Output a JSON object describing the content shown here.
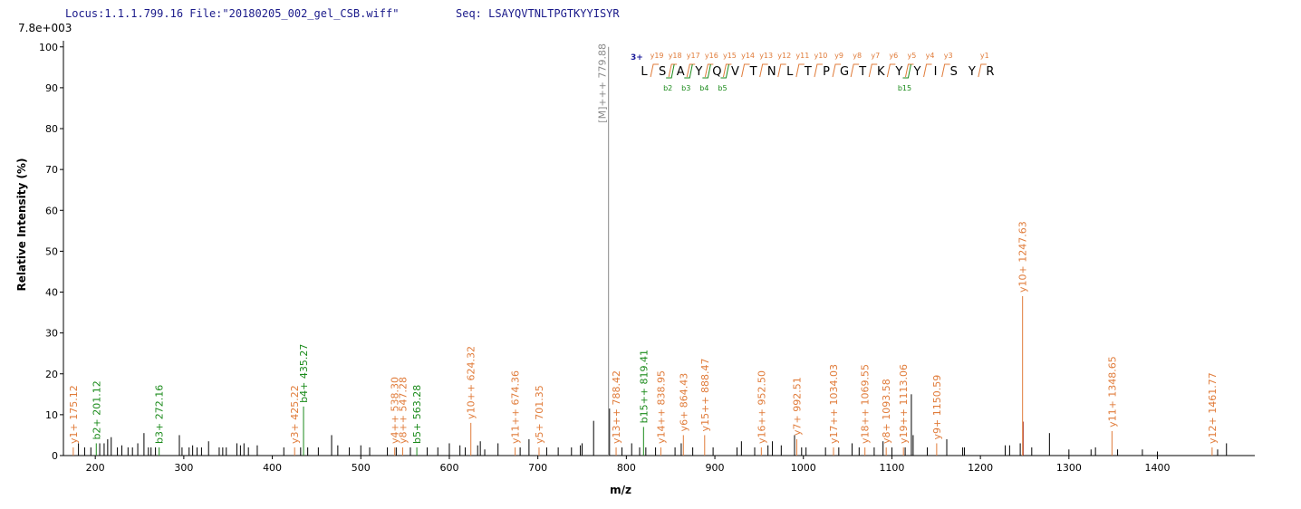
{
  "chart_data": {
    "type": "spectrum",
    "header": "Locus:1.1.1.799.16 File:\"20180205_002_gel_CSB.wiff\"",
    "sequence_label": "Seq: LSAYQVTNLTPGTKYYISYR",
    "scale_label": "7.8e+003",
    "y_axis_label": "Relative   Intensity (%)",
    "x_axis_label": "m/z",
    "xlim": [
      164,
      1510
    ],
    "ylim": [
      0,
      101.5
    ],
    "xticks": [
      200,
      300,
      400,
      500,
      600,
      700,
      800,
      900,
      1000,
      1100,
      1200,
      1300,
      1400
    ],
    "yticks": [
      0,
      10,
      20,
      30,
      40,
      50,
      60,
      70,
      80,
      90,
      100
    ],
    "peaks": {
      "color": "#000000",
      "x": [
        181,
        188,
        195,
        205,
        210,
        214,
        218,
        225,
        230,
        237,
        242,
        248,
        255,
        260,
        263,
        268,
        295,
        298,
        306,
        310,
        315,
        320,
        328,
        340,
        344,
        348,
        360,
        364,
        368,
        373,
        383,
        413,
        432,
        440,
        452,
        467,
        474,
        487,
        500,
        510,
        530,
        540,
        556,
        575,
        587,
        600,
        612,
        618,
        632,
        635,
        640,
        655,
        680,
        690,
        710,
        723,
        738,
        748,
        750,
        763,
        781,
        795,
        806,
        815,
        822,
        833,
        855,
        862,
        875,
        898,
        925,
        930,
        945,
        960,
        965,
        975,
        990,
        998,
        1003,
        1025,
        1040,
        1055,
        1063,
        1080,
        1090,
        1100,
        1115,
        1122,
        1124,
        1140,
        1162,
        1180,
        1182,
        1228,
        1233,
        1245,
        1258,
        1278,
        1300,
        1325,
        1330,
        1355,
        1383,
        1400,
        1468,
        1478
      ],
      "values": [
        3,
        2,
        2,
        3,
        3,
        4,
        4.5,
        2,
        2.5,
        2,
        2,
        3,
        5.5,
        2,
        2,
        2,
        5,
        2,
        2,
        2.5,
        2,
        2,
        3.5,
        2,
        2,
        2,
        3,
        2.5,
        3,
        2,
        2.5,
        2,
        2,
        2,
        2,
        5,
        2.5,
        2,
        2.5,
        2,
        2,
        2,
        2,
        2,
        2,
        3,
        2.5,
        2,
        2.5,
        3.5,
        1.5,
        3,
        2,
        4,
        2,
        2,
        2,
        2.5,
        3,
        8.5,
        11.5,
        2,
        3,
        2,
        2,
        2,
        2,
        3,
        2,
        2,
        2,
        3.5,
        2,
        2.5,
        3.5,
        2.5,
        5,
        2,
        2,
        2,
        2,
        3,
        2,
        2,
        3.5,
        2,
        2,
        15,
        5,
        2,
        4,
        2,
        2,
        2.5,
        2.5,
        3,
        2,
        5.5,
        1.5,
        1.5,
        2,
        1.5,
        1.5,
        1,
        1.5,
        3
      ]
    },
    "highlight_peaks": {
      "color": "#8b0000",
      "x": [
        1248.2
      ],
      "values": [
        8.3
      ]
    },
    "annotations": [
      {
        "label": "y1+ 175.12",
        "mz": 175.12,
        "intensity": 2,
        "color": "#e07b39"
      },
      {
        "label": "b2+ 201.12",
        "mz": 201.12,
        "intensity": 3,
        "color": "#1a8a1a"
      },
      {
        "label": "b3+ 272.16",
        "mz": 272.16,
        "intensity": 2,
        "color": "#1a8a1a"
      },
      {
        "label": "y3+ 425.22",
        "mz": 425.22,
        "intensity": 2,
        "color": "#e07b39"
      },
      {
        "label": "b4+ 435.27",
        "mz": 435.27,
        "intensity": 12,
        "color": "#1a8a1a"
      },
      {
        "label": "y4++ 538.30",
        "mz": 538.3,
        "intensity": 2,
        "color": "#e07b39"
      },
      {
        "label": "y8++ 547.28",
        "mz": 547.28,
        "intensity": 2,
        "color": "#e07b39"
      },
      {
        "label": "b5+ 563.28",
        "mz": 563.28,
        "intensity": 2,
        "color": "#1a8a1a"
      },
      {
        "label": "y10++ 624.32",
        "mz": 624.32,
        "intensity": 8,
        "color": "#e07b39"
      },
      {
        "label": "y11++ 674.36",
        "mz": 674.36,
        "intensity": 2,
        "color": "#e07b39"
      },
      {
        "label": "y5+ 701.35",
        "mz": 701.35,
        "intensity": 2,
        "color": "#e07b39"
      },
      {
        "label": "[M]+++ 779.88",
        "mz": 779.88,
        "intensity": 100,
        "color": "#888888"
      },
      {
        "label": "y13++ 788.42",
        "mz": 788.42,
        "intensity": 2,
        "color": "#e07b39"
      },
      {
        "label": "b15++ 819.41",
        "mz": 819.41,
        "intensity": 7,
        "color": "#1a8a1a"
      },
      {
        "label": "y14++ 838.95",
        "mz": 838.95,
        "intensity": 2,
        "color": "#e07b39"
      },
      {
        "label": "y6+ 864.43",
        "mz": 864.43,
        "intensity": 5,
        "color": "#e07b39"
      },
      {
        "label": "y15++ 888.47",
        "mz": 888.47,
        "intensity": 5,
        "color": "#e07b39"
      },
      {
        "label": "y16++ 952.50",
        "mz": 952.5,
        "intensity": 2,
        "color": "#e07b39"
      },
      {
        "label": "y7+ 992.51",
        "mz": 992.51,
        "intensity": 4,
        "color": "#e07b39"
      },
      {
        "label": "y17++ 1034.03",
        "mz": 1034.03,
        "intensity": 2,
        "color": "#e07b39"
      },
      {
        "label": "y18++ 1069.55",
        "mz": 1069.55,
        "intensity": 2,
        "color": "#e07b39"
      },
      {
        "label": "y8+ 1093.58",
        "mz": 1093.58,
        "intensity": 2,
        "color": "#e07b39"
      },
      {
        "label": "y19++ 1113.06",
        "mz": 1113.06,
        "intensity": 2,
        "color": "#e07b39"
      },
      {
        "label": "y9+ 1150.59",
        "mz": 1150.59,
        "intensity": 3,
        "color": "#e07b39"
      },
      {
        "label": "y10+ 1247.63",
        "mz": 1247.63,
        "intensity": 39,
        "color": "#e07b39"
      },
      {
        "label": "y11+ 1348.65",
        "mz": 1348.65,
        "intensity": 6,
        "color": "#e07b39"
      },
      {
        "label": "y12+ 1461.77",
        "mz": 1461.77,
        "intensity": 2,
        "color": "#e07b39"
      }
    ],
    "sequence_diagram": {
      "charge": "3+",
      "residues": [
        "L",
        "S",
        "A",
        "Y",
        "Q",
        "V",
        "T",
        "N",
        "L",
        "T",
        "P",
        "G",
        "T",
        "K",
        "Y",
        "Y",
        "I",
        "S",
        "Y",
        "R"
      ],
      "y_ions": [
        "y19",
        "y18",
        "y17",
        "y16",
        "y15",
        "y14",
        "y13",
        "y12",
        "y11",
        "y10",
        "y9",
        "y8",
        "y7",
        "y6",
        "y5",
        "y4",
        "y3",
        null,
        "y1"
      ],
      "b_ions": [
        null,
        "b2",
        "b3",
        "b4",
        "b5",
        null,
        null,
        null,
        null,
        null,
        null,
        null,
        null,
        null,
        "b15",
        null,
        null,
        null,
        null
      ]
    }
  }
}
